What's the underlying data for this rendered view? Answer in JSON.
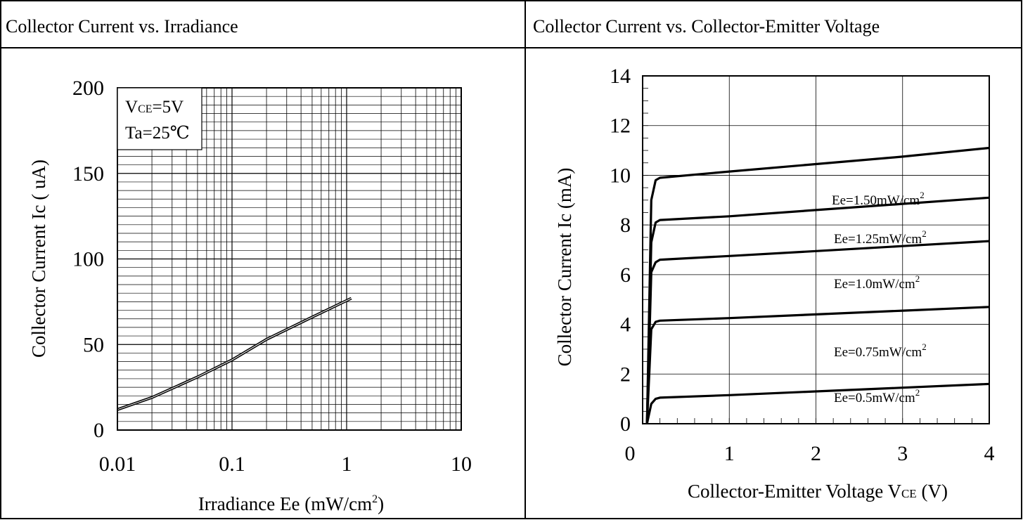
{
  "chart_data": [
    {
      "type": "line",
      "title": "Collector Current vs. Irradiance",
      "xlabel": "Irradiance Ee (mW/cm",
      "xlabel_sup": "2",
      "xlabel_end": ")",
      "ylabel": "Collector Current Ic ( uA)",
      "x_scale": "log",
      "xlim": [
        0.01,
        10
      ],
      "ylim": [
        0,
        200
      ],
      "x_ticks": [
        "0.01",
        "0.1",
        "1",
        "10"
      ],
      "y_ticks": [
        "0",
        "50",
        "100",
        "150",
        "200"
      ],
      "grid": true,
      "annotation": {
        "line1_main": "V",
        "line1_sub": "CE",
        "line1_rest": "=5V",
        "line2": "Ta=25℃"
      },
      "series": [
        {
          "x": [
            0.01,
            0.02,
            0.05,
            0.1,
            0.2,
            0.5,
            1.1
          ],
          "y": [
            12,
            19,
            31,
            41,
            53,
            66,
            77
          ]
        }
      ]
    },
    {
      "type": "line",
      "title": "Collector Current vs. Collector-Emitter Voltage",
      "xlabel": "Collector-Emitter Voltage V",
      "xlabel_sub": "CE",
      "xlabel_end": " (V)",
      "ylabel": "Collector Current Ic (mA)",
      "xlim": [
        0,
        4
      ],
      "ylim": [
        0,
        14
      ],
      "x_ticks": [
        "0",
        "1",
        "2",
        "3",
        "4"
      ],
      "y_ticks": [
        "0",
        "2",
        "4",
        "6",
        "8",
        "10",
        "12",
        "14"
      ],
      "grid": true,
      "series": [
        {
          "name": "Ee=0.5mW/cm",
          "sup": "2",
          "x": [
            0.05,
            0.1,
            0.15,
            0.2,
            1,
            2,
            3,
            4
          ],
          "y": [
            0,
            0.8,
            1.0,
            1.05,
            1.15,
            1.3,
            1.45,
            1.6
          ]
        },
        {
          "name": "Ee=0.75mW/cm",
          "sup": "2",
          "x": [
            0.05,
            0.1,
            0.15,
            0.2,
            1,
            2,
            3,
            4
          ],
          "y": [
            0,
            3.8,
            4.1,
            4.15,
            4.25,
            4.4,
            4.55,
            4.7
          ]
        },
        {
          "name": "Ee=1.0mW/cm",
          "sup": "2",
          "x": [
            0.05,
            0.1,
            0.15,
            0.2,
            1,
            2,
            3,
            4
          ],
          "y": [
            0,
            6.1,
            6.5,
            6.6,
            6.75,
            6.95,
            7.15,
            7.35
          ]
        },
        {
          "name": "Ee=1.25mW/cm",
          "sup": "2",
          "x": [
            0.05,
            0.1,
            0.15,
            0.2,
            1,
            2,
            3,
            4
          ],
          "y": [
            0,
            7.3,
            8.1,
            8.2,
            8.35,
            8.6,
            8.85,
            9.1
          ]
        },
        {
          "name": "Ee=1.50mW/cm",
          "sup": "2",
          "x": [
            0.05,
            0.1,
            0.15,
            0.2,
            1,
            2,
            3,
            4
          ],
          "y": [
            0,
            9.0,
            9.8,
            9.9,
            10.15,
            10.45,
            10.75,
            11.1
          ]
        }
      ]
    }
  ]
}
